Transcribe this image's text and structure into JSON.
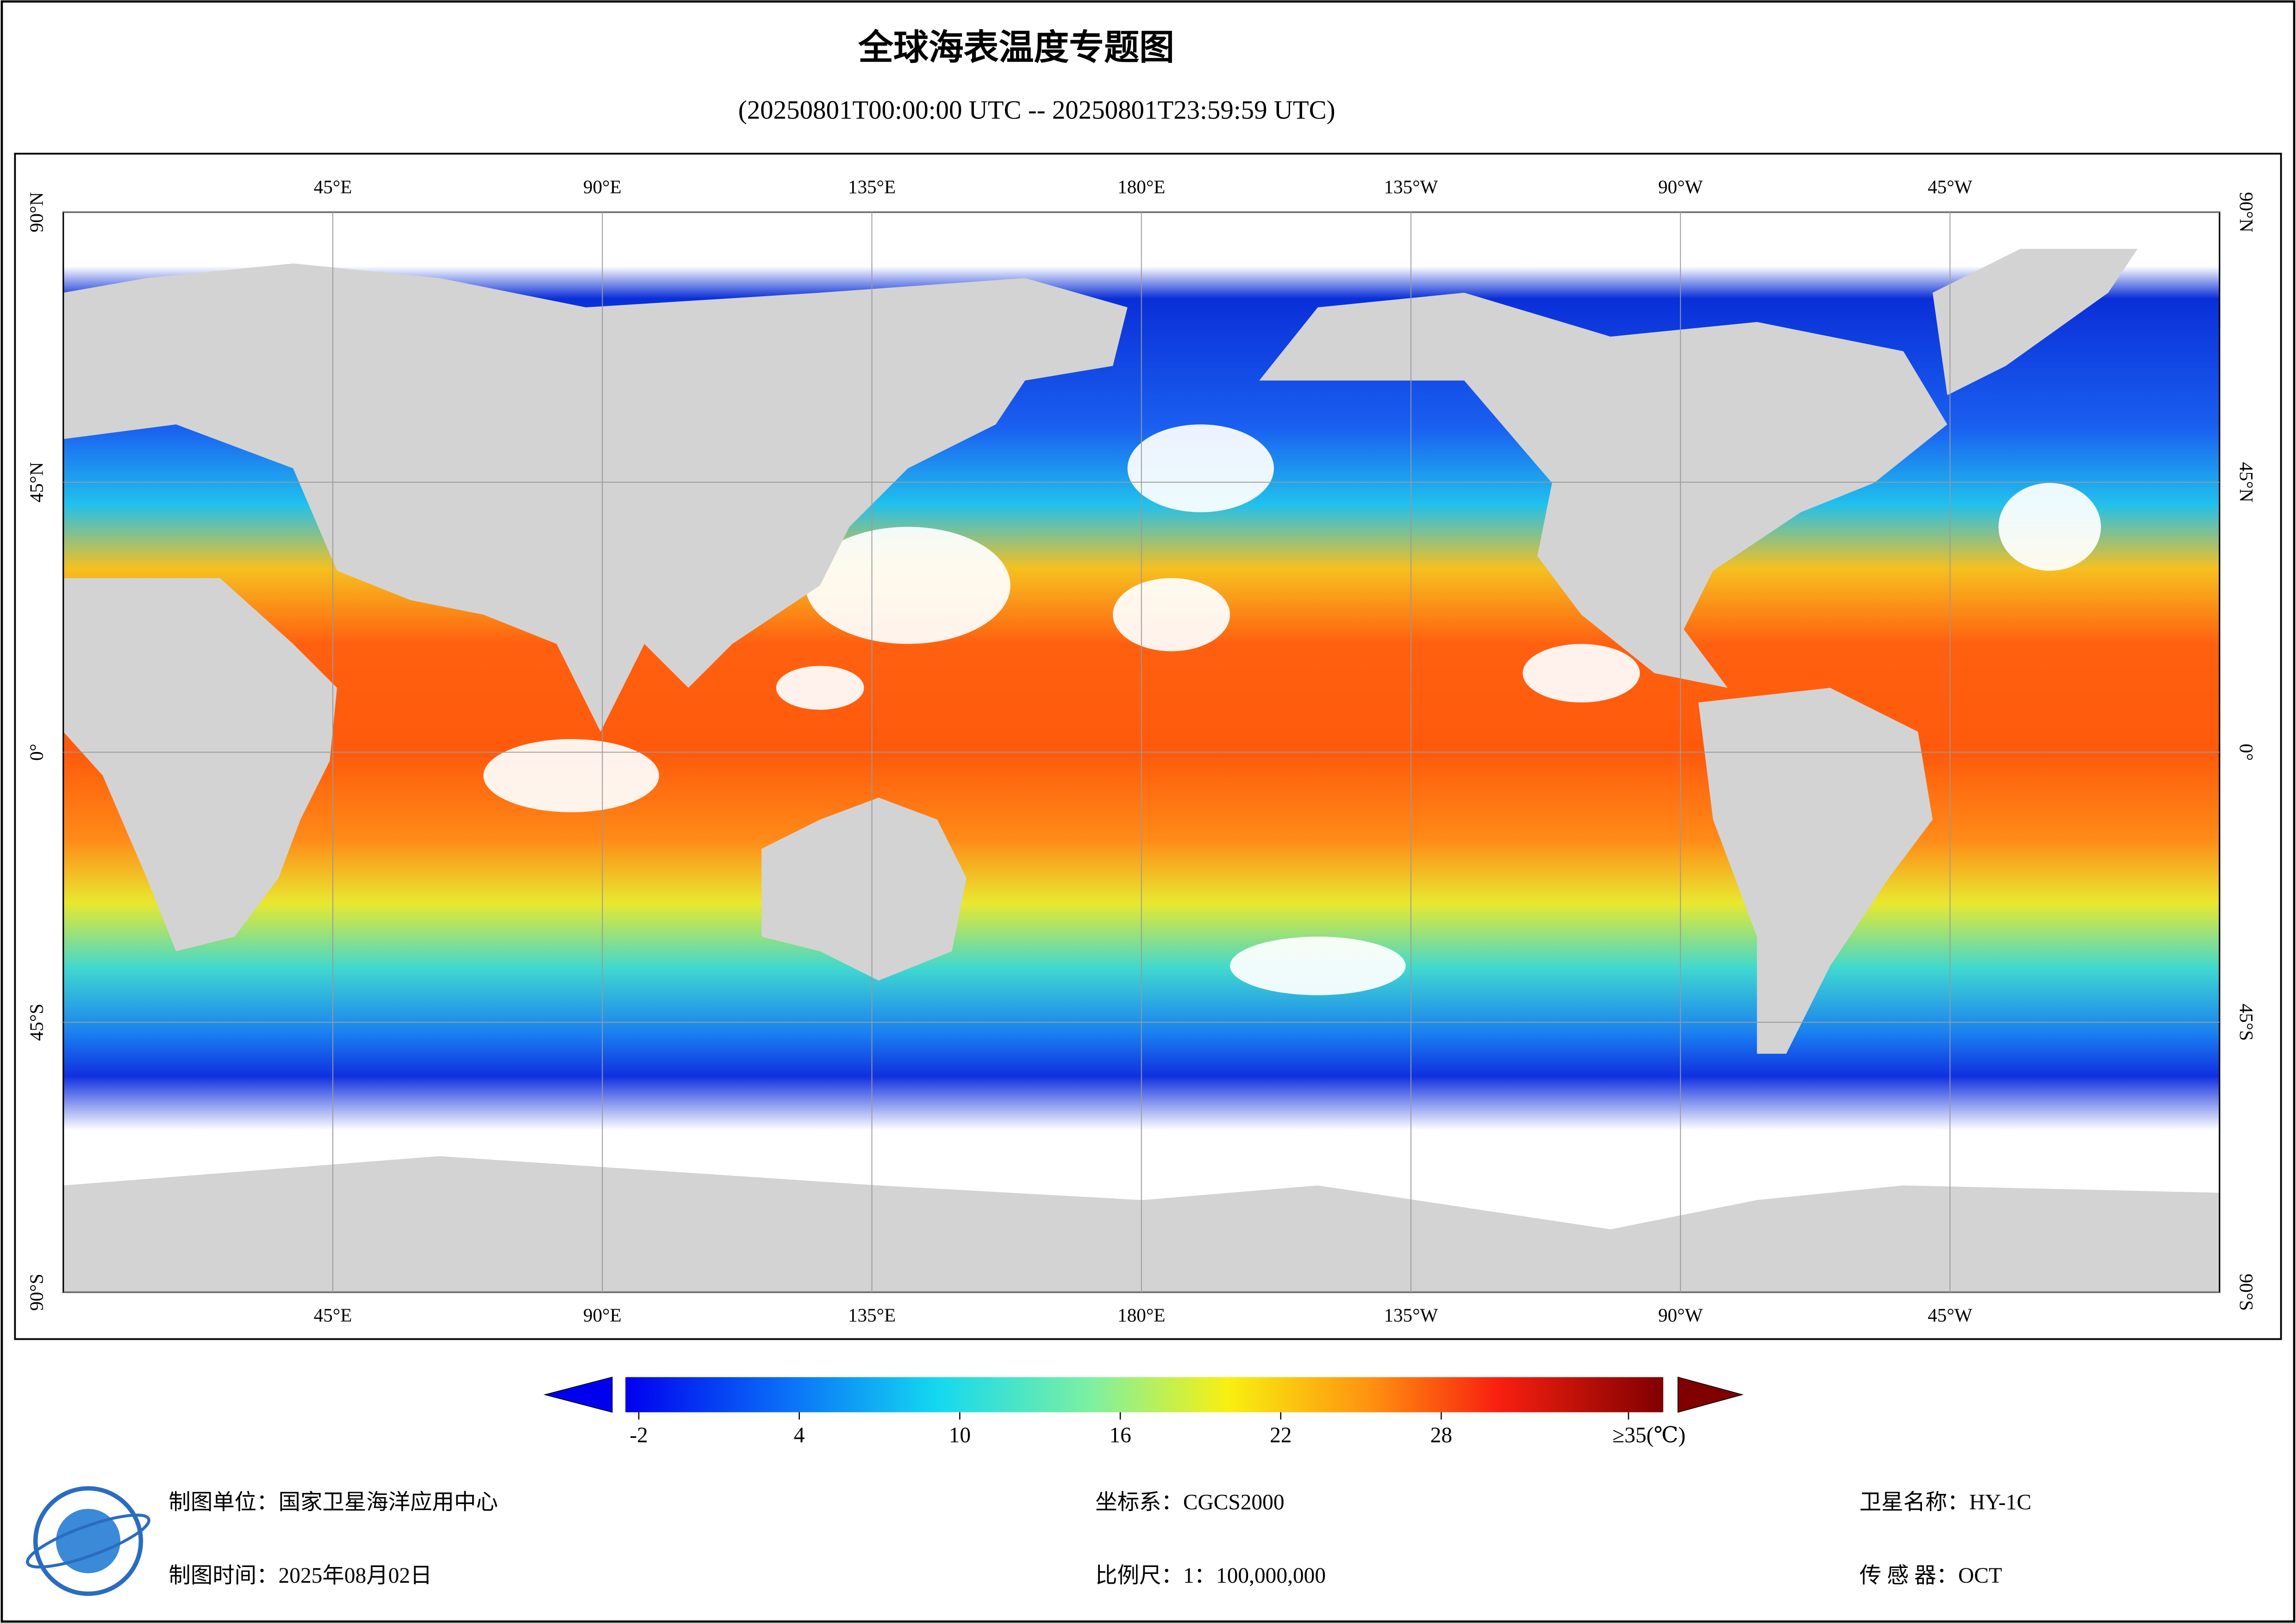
{
  "header": {
    "title": "全球海表温度专题图",
    "subtitle": "(20250801T00:00:00 UTC -- 20250801T23:59:59 UTC)"
  },
  "map": {
    "lon_range": [
      0,
      360
    ],
    "lat_range": [
      -90,
      90
    ],
    "lon_ticks": [
      {
        "value": 45,
        "label": "45°E"
      },
      {
        "value": 90,
        "label": "90°E"
      },
      {
        "value": 135,
        "label": "135°E"
      },
      {
        "value": 180,
        "label": "180°E"
      },
      {
        "value": 225,
        "label": "135°W"
      },
      {
        "value": 270,
        "label": "90°W"
      },
      {
        "value": 315,
        "label": "45°W"
      }
    ],
    "lat_ticks": [
      {
        "value": 90,
        "label": "90°N"
      },
      {
        "value": 45,
        "label": "45°N"
      },
      {
        "value": 0,
        "label": "0°"
      },
      {
        "value": -45,
        "label": "45°S"
      },
      {
        "value": -90,
        "label": "90°S"
      }
    ]
  },
  "colorbar": {
    "range": [
      -2.5,
      36.3
    ],
    "ticks": [
      -2,
      4,
      10,
      16,
      22,
      28,
      {
        "value": 35,
        "label": "≥35(℃)"
      }
    ]
  },
  "footer": {
    "unit": "制图单位：国家卫星海洋应用中心",
    "date": "制图时间：2025年08月02日",
    "crs": "坐标系：CGCS2000",
    "scale": "比例尺：1：100,000,000",
    "satellite": "卫星名称：HY-1C",
    "sensor": "传 感 器：OCT"
  }
}
